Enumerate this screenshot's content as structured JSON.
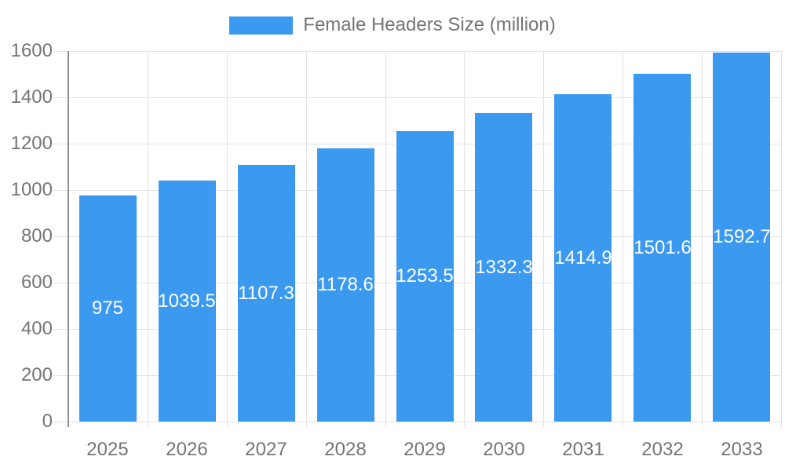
{
  "legend": {
    "label": "Female Headers Size (million)"
  },
  "chart_data": {
    "type": "bar",
    "title": "",
    "xlabel": "",
    "ylabel": "",
    "categories": [
      "2025",
      "2026",
      "2027",
      "2028",
      "2029",
      "2030",
      "2031",
      "2032",
      "2033"
    ],
    "series": [
      {
        "name": "Female Headers Size (million)",
        "values": [
          975,
          1039.5,
          1107.3,
          1178.6,
          1253.5,
          1332.3,
          1414.9,
          1501.6,
          1592.7
        ]
      }
    ],
    "ylim": [
      0,
      1600
    ],
    "y_ticks": [
      0,
      200,
      400,
      600,
      800,
      1000,
      1200,
      1400,
      1600
    ],
    "grid": true,
    "legend_position": "top",
    "colors": {
      "bar": "#3B99F0",
      "bar_value_label": "#ffffff",
      "axis_text": "#757575",
      "gridline": "#e2e2e2",
      "axis_line": "#8f8f8f",
      "background": "#ffffff"
    }
  }
}
